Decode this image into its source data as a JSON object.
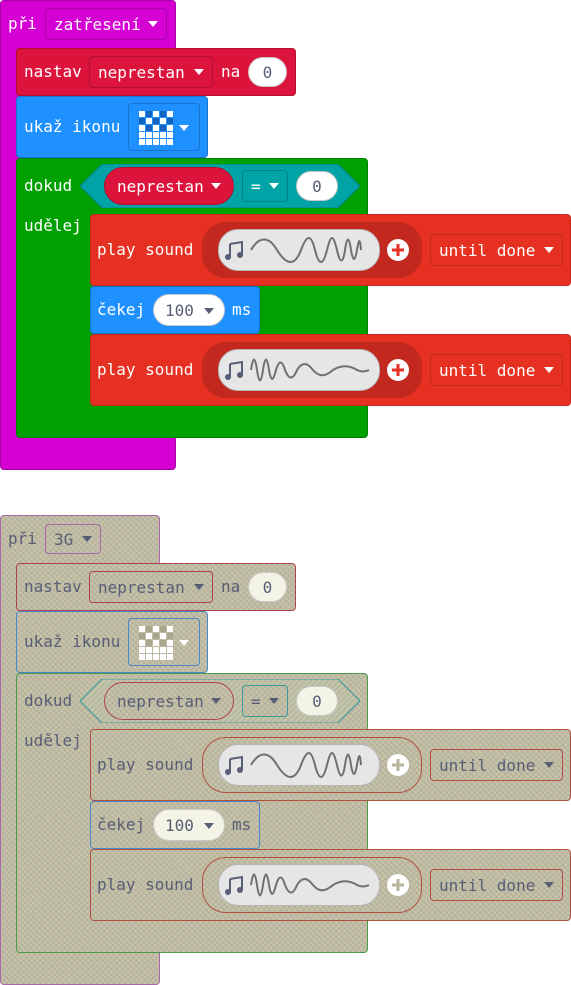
{
  "colors": {
    "event": "#d400d4",
    "variables": "#dc143c",
    "basic": "#1e90ff",
    "loops": "#00a000",
    "logic": "#00a4a6",
    "music": "#e63022",
    "music_dark": "#c2281d",
    "disabled": "#c5c3a6"
  },
  "stack1": {
    "event_label": "při",
    "event_value": "zatřesení",
    "set_label": "nastav",
    "set_var": "neprestan",
    "set_na": "na",
    "set_value": "0",
    "show_label": "ukaž ikonu",
    "while_label": "dokud",
    "while_var": "neprestan",
    "while_op": "=",
    "while_value": "0",
    "do_label": "udělej",
    "sound1_label": "play sound",
    "sound1_mode": "until done",
    "pause_label": "čekej",
    "pause_value": "100",
    "pause_unit": "ms",
    "sound2_label": "play sound",
    "sound2_mode": "until done"
  },
  "stack2": {
    "event_label": "při",
    "event_value": "3G",
    "set_label": "nastav",
    "set_var": "neprestan",
    "set_na": "na",
    "set_value": "0",
    "show_label": "ukaž ikonu",
    "while_label": "dokud",
    "while_var": "neprestan",
    "while_op": "=",
    "while_value": "0",
    "do_label": "udělej",
    "sound1_label": "play sound",
    "sound1_mode": "until done",
    "pause_label": "čekej",
    "pause_value": "100",
    "pause_unit": "ms",
    "sound2_label": "play sound",
    "sound2_mode": "until done"
  },
  "icons": {
    "music_note": "music-note-icon",
    "add": "add-icon",
    "led_face": "led-face-icon"
  }
}
